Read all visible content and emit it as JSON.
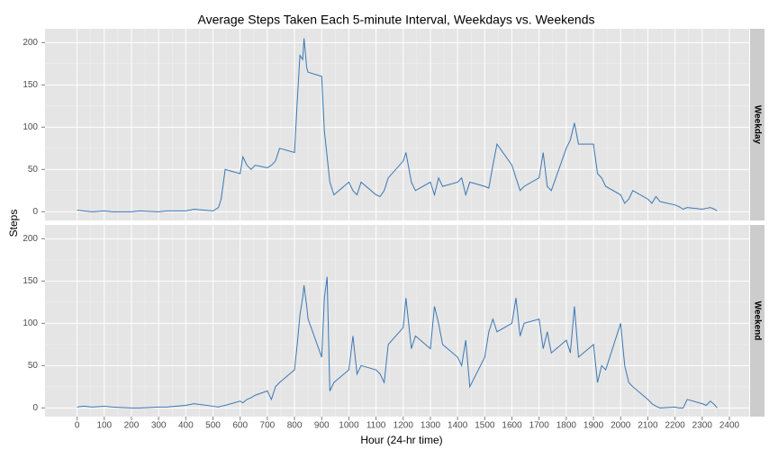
{
  "chart_data": {
    "type": "line",
    "facet": true,
    "title": "Average Steps Taken Each 5-minute Interval, Weekdays vs. Weekends",
    "x_label": "Hour (24-hr time)",
    "y_label": "Steps",
    "xlim": [
      -118,
      2473
    ],
    "ylim": [
      -10.3,
      216.3
    ],
    "xticks": [
      0,
      100,
      200,
      300,
      400,
      500,
      600,
      700,
      800,
      900,
      1000,
      1100,
      1200,
      1300,
      1400,
      1500,
      1600,
      1700,
      1800,
      1900,
      2000,
      2100,
      2200,
      2300,
      2400
    ],
    "yticks": [
      0,
      50,
      100,
      150,
      200
    ],
    "grid": true,
    "x": [
      0,
      25,
      55,
      100,
      130,
      200,
      230,
      300,
      330,
      400,
      430,
      500,
      520,
      530,
      545,
      600,
      610,
      625,
      640,
      655,
      700,
      715,
      730,
      745,
      800,
      810,
      820,
      830,
      835,
      845,
      850,
      900,
      910,
      920,
      930,
      945,
      1000,
      1015,
      1030,
      1045,
      1100,
      1115,
      1130,
      1145,
      1200,
      1210,
      1230,
      1245,
      1300,
      1315,
      1330,
      1345,
      1400,
      1415,
      1430,
      1445,
      1500,
      1515,
      1530,
      1545,
      1600,
      1615,
      1630,
      1645,
      1700,
      1715,
      1730,
      1745,
      1800,
      1815,
      1830,
      1845,
      1900,
      1915,
      1930,
      1945,
      2000,
      2015,
      2030,
      2045,
      2100,
      2115,
      2130,
      2145,
      2200,
      2215,
      2230,
      2245,
      2300,
      2315,
      2330,
      2345,
      2355
    ],
    "series": [
      {
        "name": "Weekday",
        "color": "#3a78b5",
        "values": [
          2,
          1,
          0,
          1,
          0,
          0,
          1,
          0,
          1,
          1,
          3,
          1,
          5,
          15,
          50,
          45,
          65,
          55,
          50,
          55,
          52,
          55,
          60,
          75,
          70,
          130,
          185,
          180,
          205,
          170,
          165,
          160,
          95,
          65,
          35,
          20,
          35,
          25,
          20,
          35,
          20,
          18,
          25,
          40,
          60,
          70,
          35,
          25,
          35,
          20,
          40,
          30,
          35,
          40,
          20,
          35,
          30,
          28,
          55,
          80,
          55,
          40,
          25,
          30,
          40,
          70,
          30,
          25,
          75,
          85,
          105,
          80,
          80,
          45,
          40,
          30,
          20,
          10,
          15,
          25,
          15,
          10,
          18,
          12,
          8,
          6,
          3,
          5,
          3,
          4,
          5,
          3,
          1
        ]
      },
      {
        "name": "Weekend",
        "color": "#3a78b5",
        "values": [
          1,
          2,
          1,
          2,
          1,
          0,
          0,
          1,
          1,
          3,
          5,
          2,
          1,
          2,
          3,
          8,
          6,
          10,
          12,
          15,
          20,
          10,
          25,
          30,
          45,
          75,
          110,
          130,
          145,
          120,
          105,
          60,
          130,
          155,
          20,
          30,
          45,
          85,
          40,
          50,
          45,
          40,
          30,
          75,
          95,
          130,
          70,
          85,
          70,
          120,
          100,
          75,
          60,
          50,
          80,
          25,
          60,
          90,
          105,
          90,
          100,
          130,
          85,
          100,
          105,
          70,
          90,
          65,
          80,
          65,
          120,
          60,
          75,
          30,
          50,
          45,
          100,
          50,
          30,
          25,
          10,
          5,
          2,
          0,
          1,
          0,
          0,
          10,
          5,
          3,
          8,
          4,
          0
        ]
      }
    ]
  }
}
